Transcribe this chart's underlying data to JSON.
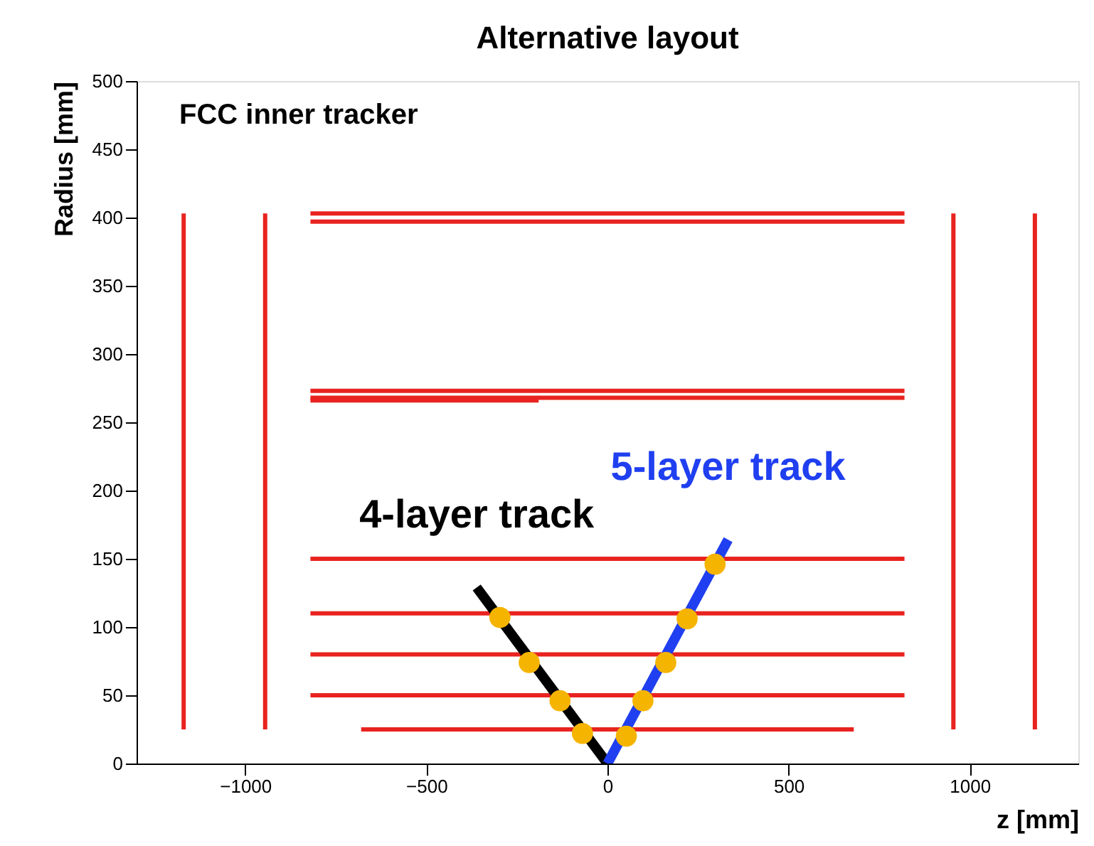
{
  "chart_data": {
    "type": "line",
    "title": "Alternative layout",
    "xlabel": "z [mm]",
    "ylabel": "Radius [mm]",
    "annotations": [
      "FCC inner tracker"
    ],
    "xlim": [
      -1300,
      1300
    ],
    "xticks": [
      {
        "value": -1000,
        "label": "−1000"
      },
      {
        "value": -500,
        "label": "−500"
      },
      0,
      500,
      1000
    ],
    "ylim": [
      0,
      500
    ],
    "yticks": [
      0,
      50,
      100,
      150,
      200,
      250,
      300,
      350,
      400,
      450,
      500
    ],
    "grid": false,
    "series": [
      {
        "color": "#e8231f",
        "x": [
          -680,
          680
        ],
        "values": [
          25,
          25
        ]
      },
      {
        "color": "#e8231f",
        "x": [
          -820,
          820
        ],
        "values": [
          50,
          50
        ]
      },
      {
        "color": "#e8231f",
        "x": [
          -820,
          820
        ],
        "values": [
          80,
          80
        ]
      },
      {
        "color": "#e8231f",
        "x": [
          -820,
          820
        ],
        "values": [
          110,
          110
        ]
      },
      {
        "color": "#e8231f",
        "x": [
          -820,
          820
        ],
        "values": [
          150,
          150
        ]
      },
      {
        "color": "#e8231f",
        "x": [
          -820,
          -190
        ],
        "values": [
          266,
          266
        ]
      },
      {
        "color": "#e8231f",
        "x": [
          -820,
          820
        ],
        "values": [
          268,
          268
        ]
      },
      {
        "color": "#e8231f",
        "x": [
          -820,
          820
        ],
        "values": [
          273,
          273
        ]
      },
      {
        "color": "#e8231f",
        "x": [
          -820,
          820
        ],
        "values": [
          397,
          397
        ]
      },
      {
        "color": "#e8231f",
        "x": [
          -820,
          820
        ],
        "values": [
          403,
          403
        ]
      },
      {
        "color": "#e8231f",
        "x": [
          -1170,
          -1170
        ],
        "values": [
          25,
          403
        ]
      },
      {
        "color": "#e8231f",
        "x": [
          -945,
          -945
        ],
        "values": [
          25,
          403
        ]
      },
      {
        "color": "#e8231f",
        "x": [
          955,
          955
        ],
        "values": [
          25,
          403
        ]
      },
      {
        "color": "#e8231f",
        "x": [
          1180,
          1180
        ],
        "values": [
          25,
          403
        ]
      },
      {
        "name": "4-layer track",
        "color": "#000000",
        "x": [
          0,
          -361
        ],
        "values": [
          0,
          129
        ]
      },
      {
        "name": "5-layer track",
        "color": "#1f3ff0",
        "x": [
          0,
          333
        ],
        "values": [
          0,
          164
        ]
      },
      {
        "type": "scatter",
        "color": "#f5b400",
        "marker": "circle",
        "x": [
          -69,
          -131,
          -216,
          -297
        ],
        "values": [
          22,
          46,
          74,
          107
        ]
      },
      {
        "type": "scatter",
        "color": "#f5b400",
        "marker": "circle",
        "x": [
          52,
          98,
          161,
          220,
          297
        ],
        "values": [
          20,
          46,
          74,
          106,
          146
        ]
      }
    ]
  }
}
